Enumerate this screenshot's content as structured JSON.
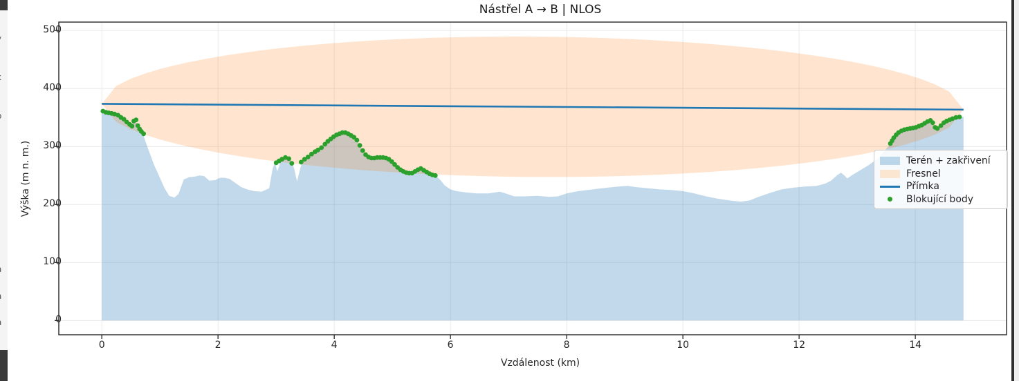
{
  "window": {
    "left_strip_fragments": [
      {
        "ch": "y",
        "y": 50
      },
      {
        "ch": "k",
        "y": 106
      },
      {
        "ch": "o",
        "y": 162
      },
      {
        "ch": "r",
        "y": 214
      },
      {
        "ch": ":",
        "y": 259
      },
      {
        "ch": "l",
        "y": 300
      },
      {
        "ch": "\\",
        "y": 342
      },
      {
        "ch": "a",
        "y": 384
      },
      {
        "ch": "a",
        "y": 423
      },
      {
        "ch": "a",
        "y": 461
      },
      {
        "ch": "l",
        "y": 500
      }
    ]
  },
  "colors": {
    "line_blue": "#1f77b4",
    "terrain_fill": "#1f77b4",
    "fresnel_fill": "#ff7f0e",
    "blocker_green": "#2ca02c",
    "spine": "#262626",
    "grid": "#e9e9e9",
    "text": "#262626",
    "legend_border": "#cccccc"
  },
  "chart_data": {
    "type": "area",
    "title": "Nástřel A → B | NLOS",
    "xlabel": "Vzdálenost (km)",
    "ylabel": "Výška (m n. m.)",
    "xlim": [
      -0.74,
      15.57
    ],
    "ylim": [
      -24.6,
      514.5
    ],
    "xticks": [
      0,
      2,
      4,
      6,
      8,
      10,
      12,
      14
    ],
    "yticks": [
      0,
      100,
      200,
      300,
      400,
      500
    ],
    "grid": true,
    "legend": {
      "position": "center right",
      "items": [
        {
          "label": "Terén + zakřivení",
          "type": "patch",
          "color": "#bcd6e9"
        },
        {
          "label": "Fresnel",
          "type": "patch",
          "color": "#fbe6d2"
        },
        {
          "label": "Přímka",
          "type": "line",
          "color": "#1f77b4"
        },
        {
          "label": "Blokující body",
          "type": "dot",
          "color": "#2ca02c"
        }
      ]
    },
    "sight_line": {
      "name": "Přímka",
      "start": [
        0,
        373.5
      ],
      "end": [
        14.83,
        363.5
      ],
      "width": 2.6
    },
    "fresnel": {
      "name": "Fresnel",
      "half_height_m": 121,
      "opacity": 0.2
    },
    "terrain": {
      "name": "Terén + zakřivení",
      "opacity": 0.28,
      "points": [
        [
          0,
          362
        ],
        [
          0.1,
          358
        ],
        [
          0.2,
          356
        ],
        [
          0.3,
          351
        ],
        [
          0.38,
          346
        ],
        [
          0.44,
          341
        ],
        [
          0.5,
          334
        ],
        [
          0.54,
          343
        ],
        [
          0.58,
          346
        ],
        [
          0.62,
          335
        ],
        [
          0.66,
          327
        ],
        [
          0.72,
          318
        ],
        [
          0.8,
          295
        ],
        [
          0.9,
          268
        ],
        [
          1.0,
          246
        ],
        [
          1.08,
          228
        ],
        [
          1.16,
          215
        ],
        [
          1.25,
          212
        ],
        [
          1.32,
          218
        ],
        [
          1.41,
          243
        ],
        [
          1.5,
          247
        ],
        [
          1.6,
          248
        ],
        [
          1.68,
          250
        ],
        [
          1.76,
          249
        ],
        [
          1.85,
          241
        ],
        [
          1.95,
          242
        ],
        [
          2.03,
          246
        ],
        [
          2.12,
          246
        ],
        [
          2.2,
          244
        ],
        [
          2.3,
          237
        ],
        [
          2.4,
          230
        ],
        [
          2.5,
          226
        ],
        [
          2.62,
          223
        ],
        [
          2.75,
          222
        ],
        [
          2.88,
          228
        ],
        [
          2.94,
          262
        ],
        [
          2.98,
          272
        ],
        [
          3.02,
          257
        ],
        [
          3.08,
          274
        ],
        [
          3.14,
          280
        ],
        [
          3.2,
          280
        ],
        [
          3.26,
          276
        ],
        [
          3.31,
          262
        ],
        [
          3.36,
          240
        ],
        [
          3.41,
          260
        ],
        [
          3.45,
          274
        ],
        [
          3.52,
          280
        ],
        [
          3.6,
          286
        ],
        [
          3.7,
          294
        ],
        [
          3.8,
          302
        ],
        [
          3.9,
          311
        ],
        [
          4.0,
          318
        ],
        [
          4.08,
          322
        ],
        [
          4.16,
          324
        ],
        [
          4.24,
          322
        ],
        [
          4.32,
          317
        ],
        [
          4.4,
          310
        ],
        [
          4.46,
          298
        ],
        [
          4.52,
          288
        ],
        [
          4.58,
          282
        ],
        [
          4.65,
          279
        ],
        [
          4.72,
          280
        ],
        [
          4.8,
          281
        ],
        [
          4.88,
          280
        ],
        [
          4.96,
          276
        ],
        [
          5.04,
          269
        ],
        [
          5.12,
          262
        ],
        [
          5.2,
          256
        ],
        [
          5.28,
          253
        ],
        [
          5.36,
          254
        ],
        [
          5.44,
          259
        ],
        [
          5.5,
          261
        ],
        [
          5.58,
          256
        ],
        [
          5.66,
          252
        ],
        [
          5.74,
          250
        ],
        [
          5.82,
          243
        ],
        [
          5.9,
          233
        ],
        [
          6.0,
          226
        ],
        [
          6.1,
          223
        ],
        [
          6.25,
          221
        ],
        [
          6.45,
          219
        ],
        [
          6.65,
          219
        ],
        [
          6.85,
          222
        ],
        [
          6.95,
          219
        ],
        [
          7.1,
          214
        ],
        [
          7.3,
          214
        ],
        [
          7.5,
          215
        ],
        [
          7.7,
          213
        ],
        [
          7.85,
          214
        ],
        [
          8.0,
          219
        ],
        [
          8.2,
          223
        ],
        [
          8.45,
          226
        ],
        [
          8.7,
          229
        ],
        [
          8.9,
          231
        ],
        [
          9.05,
          232
        ],
        [
          9.2,
          230
        ],
        [
          9.4,
          228
        ],
        [
          9.6,
          226
        ],
        [
          9.8,
          225
        ],
        [
          10.0,
          223
        ],
        [
          10.2,
          219
        ],
        [
          10.4,
          214
        ],
        [
          10.6,
          210
        ],
        [
          10.8,
          207
        ],
        [
          11.0,
          205
        ],
        [
          11.15,
          207
        ],
        [
          11.3,
          213
        ],
        [
          11.5,
          220
        ],
        [
          11.7,
          226
        ],
        [
          11.9,
          229
        ],
        [
          12.1,
          231
        ],
        [
          12.3,
          232
        ],
        [
          12.45,
          236
        ],
        [
          12.55,
          241
        ],
        [
          12.65,
          250
        ],
        [
          12.72,
          255
        ],
        [
          12.78,
          250
        ],
        [
          12.83,
          245
        ],
        [
          12.92,
          251
        ],
        [
          13.05,
          259
        ],
        [
          13.2,
          268
        ],
        [
          13.35,
          279
        ],
        [
          13.5,
          296
        ],
        [
          13.6,
          308
        ],
        [
          13.68,
          320
        ],
        [
          13.76,
          327
        ],
        [
          13.85,
          330
        ],
        [
          13.95,
          332
        ],
        [
          14.05,
          334
        ],
        [
          14.14,
          337
        ],
        [
          14.22,
          342
        ],
        [
          14.28,
          345
        ],
        [
          14.33,
          336
        ],
        [
          14.38,
          331
        ],
        [
          14.44,
          336
        ],
        [
          14.5,
          341
        ],
        [
          14.58,
          346
        ],
        [
          14.68,
          349
        ],
        [
          14.78,
          351
        ],
        [
          14.83,
          351
        ]
      ]
    },
    "blockers": {
      "name": "Blokující body",
      "radius_px": 3.4,
      "points": [
        [
          0.02,
          361
        ],
        [
          0.07,
          359
        ],
        [
          0.12,
          358
        ],
        [
          0.17,
          357
        ],
        [
          0.22,
          356
        ],
        [
          0.28,
          354
        ],
        [
          0.33,
          350
        ],
        [
          0.38,
          347
        ],
        [
          0.43,
          342
        ],
        [
          0.48,
          338
        ],
        [
          0.52,
          335
        ],
        [
          0.55,
          344
        ],
        [
          0.59,
          346
        ],
        [
          0.62,
          336
        ],
        [
          0.65,
          330
        ],
        [
          0.68,
          326
        ],
        [
          0.72,
          322
        ],
        [
          3.0,
          272
        ],
        [
          3.05,
          275
        ],
        [
          3.1,
          278
        ],
        [
          3.16,
          281
        ],
        [
          3.22,
          279
        ],
        [
          3.27,
          271
        ],
        [
          3.43,
          273
        ],
        [
          3.49,
          278
        ],
        [
          3.55,
          282
        ],
        [
          3.61,
          287
        ],
        [
          3.67,
          291
        ],
        [
          3.72,
          294
        ],
        [
          3.78,
          298
        ],
        [
          3.84,
          304
        ],
        [
          3.89,
          309
        ],
        [
          3.94,
          313
        ],
        [
          3.99,
          317
        ],
        [
          4.04,
          320
        ],
        [
          4.09,
          322
        ],
        [
          4.14,
          324
        ],
        [
          4.19,
          324
        ],
        [
          4.24,
          322
        ],
        [
          4.29,
          319
        ],
        [
          4.34,
          316
        ],
        [
          4.39,
          311
        ],
        [
          4.44,
          302
        ],
        [
          4.49,
          293
        ],
        [
          4.54,
          286
        ],
        [
          4.59,
          282
        ],
        [
          4.64,
          280
        ],
        [
          4.69,
          280
        ],
        [
          4.74,
          281
        ],
        [
          4.79,
          281
        ],
        [
          4.84,
          281
        ],
        [
          4.89,
          280
        ],
        [
          4.94,
          278
        ],
        [
          4.99,
          274
        ],
        [
          5.04,
          269
        ],
        [
          5.09,
          264
        ],
        [
          5.14,
          260
        ],
        [
          5.19,
          257
        ],
        [
          5.24,
          255
        ],
        [
          5.29,
          254
        ],
        [
          5.34,
          254
        ],
        [
          5.39,
          257
        ],
        [
          5.44,
          260
        ],
        [
          5.49,
          262
        ],
        [
          5.54,
          259
        ],
        [
          5.59,
          256
        ],
        [
          5.64,
          253
        ],
        [
          5.69,
          251
        ],
        [
          5.74,
          250
        ],
        [
          13.57,
          305
        ],
        [
          13.6,
          310
        ],
        [
          13.63,
          315
        ],
        [
          13.67,
          320
        ],
        [
          13.71,
          324
        ],
        [
          13.76,
          327
        ],
        [
          13.81,
          329
        ],
        [
          13.86,
          330
        ],
        [
          13.91,
          331
        ],
        [
          13.96,
          332
        ],
        [
          14.01,
          333
        ],
        [
          14.06,
          335
        ],
        [
          14.11,
          337
        ],
        [
          14.16,
          340
        ],
        [
          14.21,
          343
        ],
        [
          14.26,
          345
        ],
        [
          14.3,
          341
        ],
        [
          14.34,
          333
        ],
        [
          14.38,
          331
        ],
        [
          14.44,
          336
        ],
        [
          14.49,
          341
        ],
        [
          14.54,
          344
        ],
        [
          14.59,
          346
        ],
        [
          14.64,
          348
        ],
        [
          14.7,
          350
        ],
        [
          14.76,
          351
        ]
      ]
    }
  }
}
